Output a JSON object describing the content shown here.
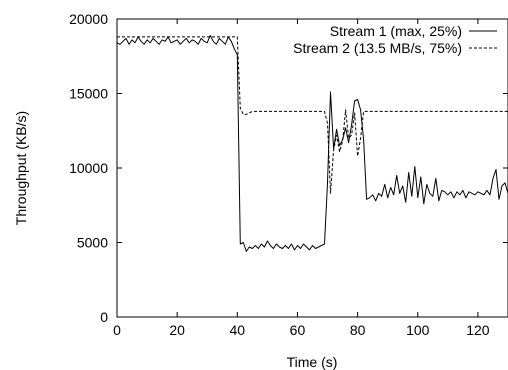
{
  "chart_data": {
    "type": "line",
    "xlabel": "Time (s)",
    "ylabel": "Throughput (KB/s)",
    "xlim": [
      0,
      130
    ],
    "ylim": [
      0,
      20000
    ],
    "x_ticks": [
      0,
      20,
      40,
      60,
      80,
      100,
      120
    ],
    "y_ticks": [
      0,
      5000,
      10000,
      15000,
      20000
    ],
    "legend_position": "top-right",
    "grid": false,
    "series": [
      {
        "name": "Stream 1 (max, 25%)",
        "style": "solid",
        "x": [
          0,
          1,
          2,
          3,
          4,
          5,
          6,
          7,
          8,
          9,
          10,
          11,
          12,
          13,
          14,
          15,
          16,
          17,
          18,
          19,
          20,
          21,
          22,
          23,
          24,
          25,
          26,
          27,
          28,
          29,
          30,
          31,
          32,
          33,
          34,
          35,
          36,
          37,
          38,
          39,
          40,
          41,
          42,
          43,
          44,
          45,
          46,
          47,
          48,
          49,
          50,
          51,
          52,
          53,
          54,
          55,
          56,
          57,
          58,
          59,
          60,
          61,
          62,
          63,
          64,
          65,
          66,
          67,
          68,
          69,
          70,
          71,
          72,
          73,
          74,
          75,
          76,
          77,
          78,
          79,
          80,
          81,
          82,
          83,
          84,
          85,
          86,
          87,
          88,
          89,
          90,
          91,
          92,
          93,
          94,
          95,
          96,
          97,
          98,
          99,
          100,
          101,
          102,
          103,
          104,
          105,
          106,
          107,
          108,
          109,
          110,
          111,
          112,
          113,
          114,
          115,
          116,
          117,
          118,
          119,
          120,
          121,
          122,
          123,
          124,
          125,
          126,
          127,
          128,
          129,
          130
        ],
        "y": [
          18400,
          18300,
          18500,
          18700,
          18300,
          18600,
          18400,
          18800,
          18500,
          18300,
          18600,
          18400,
          18700,
          18500,
          18300,
          18600,
          18500,
          18800,
          18400,
          18500,
          18600,
          18300,
          18500,
          18700,
          18400,
          18600,
          18500,
          18300,
          18700,
          18500,
          18400,
          18900,
          18500,
          18300,
          18700,
          18500,
          18300,
          18800,
          18500,
          18000,
          17600,
          4900,
          5000,
          4400,
          4700,
          4600,
          4800,
          4600,
          4900,
          4700,
          5100,
          4800,
          4600,
          4900,
          4700,
          4600,
          4800,
          4600,
          4900,
          4500,
          4800,
          4600,
          4900,
          4700,
          4500,
          4800,
          4600,
          4700,
          4800,
          4900,
          9000,
          15100,
          11300,
          12600,
          11500,
          11900,
          12700,
          11700,
          12900,
          14500,
          14600,
          13900,
          11900,
          7900,
          8000,
          8200,
          7800,
          8300,
          8100,
          8900,
          8000,
          8700,
          8200,
          9500,
          8300,
          8800,
          7700,
          9700,
          8100,
          10100,
          8000,
          9400,
          7600,
          8900,
          8300,
          8100,
          9300,
          7800,
          8500,
          8400,
          8200,
          8400,
          8000,
          8400,
          8200,
          8500,
          8000,
          8400,
          8300,
          8200,
          8400,
          8300,
          8200,
          8500,
          8200,
          9300,
          9900,
          7900,
          8800,
          9000,
          8300
        ]
      },
      {
        "name": "Stream 2 (13.5 MB/s, 75%)",
        "style": "dashed",
        "x": [
          0,
          40,
          41,
          42,
          43,
          44,
          45,
          60,
          68,
          69,
          70,
          71,
          72,
          73,
          74,
          75,
          76,
          77,
          78,
          79,
          80,
          81,
          82,
          90,
          100,
          110,
          120,
          130
        ],
        "y": [
          18800,
          18800,
          14000,
          13600,
          13600,
          13700,
          13800,
          13800,
          13800,
          13800,
          13000,
          8300,
          11200,
          12200,
          11100,
          11800,
          13900,
          12000,
          12200,
          13700,
          10800,
          12000,
          13800,
          13800,
          13800,
          13800,
          13800,
          13800
        ]
      }
    ]
  }
}
